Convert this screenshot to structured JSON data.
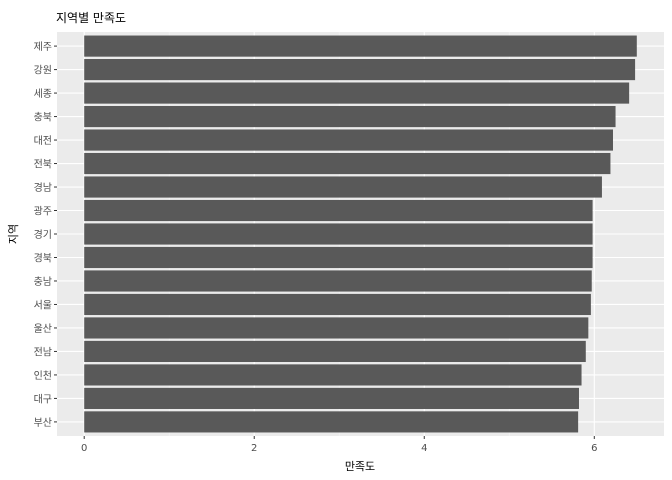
{
  "chart_data": {
    "type": "bar",
    "orientation": "horizontal",
    "title": "지역별 만족도",
    "xlabel": "만족도",
    "ylabel": "지역",
    "categories": [
      "제주",
      "강원",
      "세종",
      "충북",
      "대전",
      "전북",
      "경남",
      "광주",
      "경기",
      "경북",
      "충남",
      "서울",
      "울산",
      "전남",
      "인천",
      "대구",
      "부산"
    ],
    "values": [
      6.5,
      6.48,
      6.41,
      6.25,
      6.22,
      6.19,
      6.09,
      5.98,
      5.98,
      5.98,
      5.97,
      5.96,
      5.93,
      5.9,
      5.85,
      5.82,
      5.81
    ],
    "xlim": [
      -0.32,
      6.82
    ],
    "xticks": [
      0,
      2,
      4,
      6
    ],
    "grid": true,
    "legend": "none",
    "colors": {
      "bar": "#595959",
      "panel": "#ebebeb",
      "grid_major": "#ffffff",
      "grid_minor": "#f5f5f5"
    }
  }
}
